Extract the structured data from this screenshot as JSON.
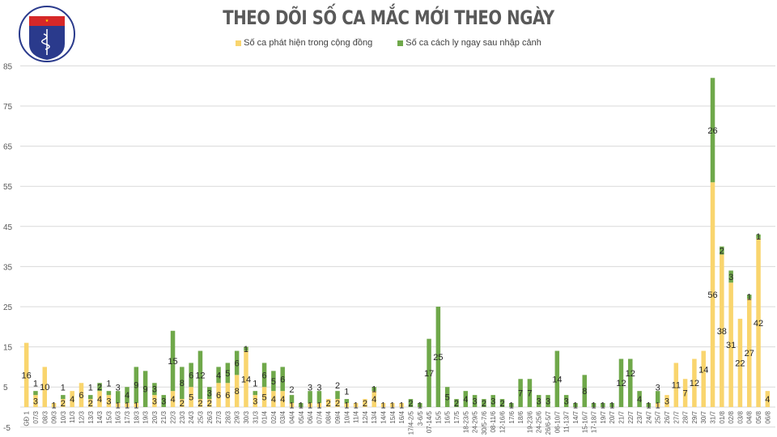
{
  "logo": {
    "top_text": "BỘ Y TẾ",
    "bottom_text": "MINISTRY OF HEALTH"
  },
  "chart_data": {
    "type": "bar",
    "stacked": true,
    "title": "THEO DÕI SỐ CA MẮC MỚI THEO NGÀY",
    "xlabel": "",
    "ylabel": "",
    "ylim": [
      -5,
      85
    ],
    "yticks": [
      85,
      75,
      65,
      55,
      45,
      35,
      25,
      15,
      5,
      -5
    ],
    "grid": true,
    "legend_position": "top-center",
    "colors": {
      "community": "#F9D56E",
      "quarantine": "#6FA84A"
    },
    "categories": [
      "GĐ 1",
      "07/3",
      "08/3",
      "09/3",
      "10/3",
      "11/3",
      "12/3",
      "13/3",
      "14/3",
      "15/3",
      "16/3",
      "17/3",
      "18/3",
      "19/3",
      "20/3",
      "21/3",
      "22/3",
      "23/3",
      "24/3",
      "25/3",
      "26/3",
      "27/3",
      "28/3",
      "29/3",
      "30/3",
      "31/3",
      "01/4",
      "02/4",
      "03/4",
      "04/4",
      "05/4",
      "06/4",
      "07/4",
      "08/4",
      "09/4",
      "10/4",
      "11/4",
      "12/4",
      "13/4",
      "14/4",
      "15/4",
      "16/4",
      "17/4-2/5",
      "3-6/5",
      "07-14/5",
      "15/5",
      "16/5",
      "17/5",
      "18-23/5",
      "24-29/5",
      "30/5-7/6",
      "08-11/6",
      "12-16/6",
      "17/6",
      "18/6",
      "19-23/6",
      "24-25/6",
      "26/6-5/7",
      "06-10/7",
      "11-13/7",
      "14/7",
      "15-16/7",
      "17-18/7",
      "19/7",
      "20/7",
      "21/7",
      "22/7",
      "23/7",
      "24/7",
      "25/7",
      "26/7",
      "27/7",
      "28/7",
      "29/7",
      "30/7",
      "31/7",
      "01/8",
      "02/8",
      "03/8",
      "04/8",
      "05/8",
      "06/8"
    ],
    "series": [
      {
        "name": "Số ca phát hiện trong cộng đồng",
        "values": [
          16,
          3,
          10,
          1,
          2,
          4,
          6,
          2,
          4,
          3,
          1,
          1,
          1,
          0,
          3,
          0,
          4,
          2,
          5,
          2,
          2,
          6,
          6,
          8,
          14,
          3,
          5,
          4,
          4,
          1,
          0,
          1,
          1,
          2,
          2,
          1,
          1,
          2,
          4,
          1,
          1,
          1,
          0,
          0,
          0,
          0,
          0,
          0,
          0,
          0,
          0,
          0,
          0,
          0,
          0,
          0,
          0,
          0,
          0,
          0,
          0,
          0,
          0,
          0,
          0,
          0,
          0,
          0,
          0,
          1,
          3,
          11,
          7,
          12,
          14,
          56,
          38,
          31,
          22,
          27,
          42,
          4
        ]
      },
      {
        "name": "Số ca cách ly ngay sau nhập cảnh",
        "values": [
          0,
          1,
          0,
          0,
          1,
          0,
          0,
          1,
          2,
          1,
          3,
          4,
          9,
          9,
          3,
          3,
          15,
          8,
          6,
          12,
          3,
          4,
          5,
          6,
          1,
          1,
          6,
          5,
          6,
          2,
          1,
          3,
          3,
          0,
          2,
          1,
          0,
          0,
          1,
          0,
          0,
          0,
          2,
          1,
          17,
          25,
          5,
          2,
          4,
          3,
          2,
          3,
          2,
          1,
          7,
          7,
          3,
          3,
          14,
          3,
          1,
          8,
          1,
          1,
          1,
          12,
          12,
          4,
          1,
          3,
          0,
          0,
          0,
          0,
          0,
          26,
          2,
          3,
          0,
          1,
          1,
          0
        ]
      }
    ]
  }
}
